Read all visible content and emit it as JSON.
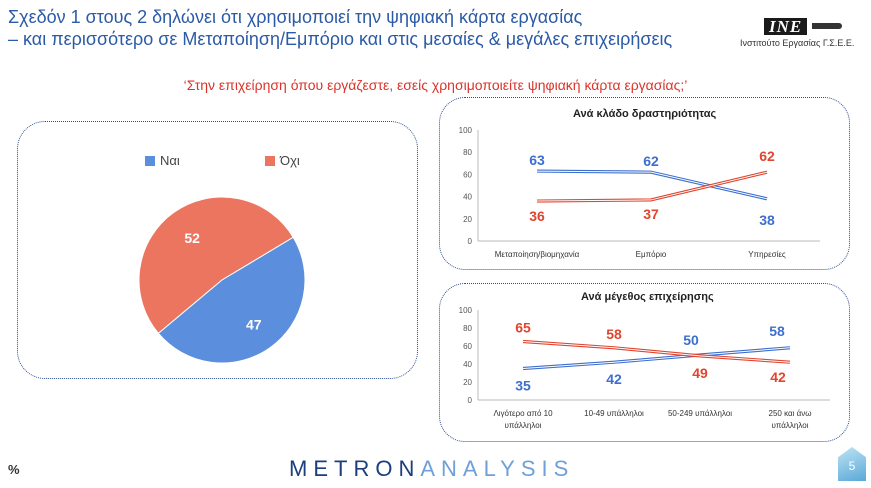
{
  "header": {
    "title_line1": "Σχεδόν 1 στους 2 δηλώνει ότι χρησιμοποιεί την ψηφιακή κάρτα εργασίας",
    "title_line2": "– και περισσότερο σε Μεταποίηση/Εμπόριο και στις μεσαίες & μεγάλες επιχειρήσεις",
    "logo_mark": "INE",
    "logo_caption": "Ινστιτούτο Εργασίας Γ.Σ.Ε.Ε.",
    "question": "‘Στην επιχείρηση όπου εργάζεστε, εσείς χρησιμοποιείτε ψηφιακή κάρτα εργασίας;’"
  },
  "colors": {
    "yes": "#5b8fdd",
    "no": "#ec7560",
    "title": "#2b5aa6",
    "question": "#d9342b",
    "line_yes": "#3d6fcf",
    "line_no": "#e0452f"
  },
  "chart_data": [
    {
      "type": "pie",
      "labels": [
        "Ναι",
        "Όχι"
      ],
      "values": [
        47,
        52
      ],
      "legend": "top"
    },
    {
      "type": "line",
      "title": "Ανά κλάδο δραστηριότητας",
      "categories": [
        "Μεταποίηση/βιομηχανία",
        "Εμπόριο",
        "Υπηρεσίες"
      ],
      "series": [
        {
          "name": "Ναι",
          "values": [
            63,
            62,
            38
          ]
        },
        {
          "name": "Όχι",
          "values": [
            36,
            37,
            62
          ]
        }
      ],
      "ylim": [
        0,
        100
      ],
      "yticks": [
        "0",
        "20",
        "40",
        "60",
        "80",
        "100"
      ]
    },
    {
      "type": "line",
      "title": "Ανά μέγεθος επιχείρησης",
      "categories": [
        "Λιγότερο από 10 υπάλληλοι",
        "10-49 υπάλληλοι",
        "50-249 υπάλληλοι",
        "250 και άνω υπάλληλοι"
      ],
      "series": [
        {
          "name": "Ναι",
          "values": [
            35,
            42,
            50,
            58
          ]
        },
        {
          "name": "Όχι",
          "values": [
            65,
            58,
            49,
            42
          ]
        }
      ],
      "ylim": [
        0,
        100
      ],
      "yticks": [
        "0",
        "20",
        "40",
        "60",
        "80",
        "100"
      ]
    }
  ],
  "footer": {
    "percent_sign": "%",
    "brand_part1": "METRON",
    "brand_part2": "ANALYSIS",
    "page_number": "5"
  }
}
